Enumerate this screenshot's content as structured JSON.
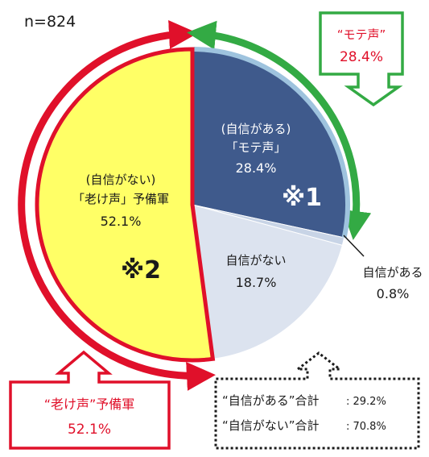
{
  "chart_data": {
    "type": "pie",
    "sample_label": "n=824",
    "start_angle_deg": 0,
    "direction": "clockwise",
    "slices": [
      {
        "name": "(自信がある)「モテ声」",
        "line1": "(自信がある)",
        "line2": "「モテ声」",
        "value": 28.4,
        "value_label": "28.4%",
        "color": "#3f5a8c",
        "text_color": "#ffffff",
        "marker": "※1"
      },
      {
        "name": "自信がある",
        "line1": "自信がある",
        "line2": "",
        "value": 0.8,
        "value_label": "0.8%",
        "color": "#c8d4e6",
        "text_color": "#1a1a1a",
        "marker": ""
      },
      {
        "name": "自信がない",
        "line1": "自信がない",
        "line2": "",
        "value": 18.7,
        "value_label": "18.7%",
        "color": "#dce3ef",
        "text_color": "#1a1a1a",
        "marker": ""
      },
      {
        "name": "(自信がない)「老け声」予備軍",
        "line1": "(自信がない)",
        "line2": "「老け声」予備軍",
        "value": 52.1,
        "value_label": "52.1%",
        "color": "#ffff66",
        "text_color": "#1a1a1a",
        "marker": "※2"
      }
    ],
    "callouts": {
      "mote": {
        "title": "“モテ声”",
        "value": "28.4%",
        "color": "#33aa44",
        "text_color": "#e0102a"
      },
      "fuke": {
        "title": "“老け声”予備軍",
        "value": "52.1%",
        "color": "#e0102a",
        "text_color": "#e0102a"
      },
      "totals": {
        "confident": {
          "label": "“自信がある”合計",
          "value": ": 29.2%"
        },
        "not_confident": {
          "label": "“自信がない”合計",
          "value": ": 70.8%"
        }
      }
    },
    "colors": {
      "red": "#e0102a",
      "green": "#33aa44",
      "blue_edge": "#9ec3de"
    }
  }
}
